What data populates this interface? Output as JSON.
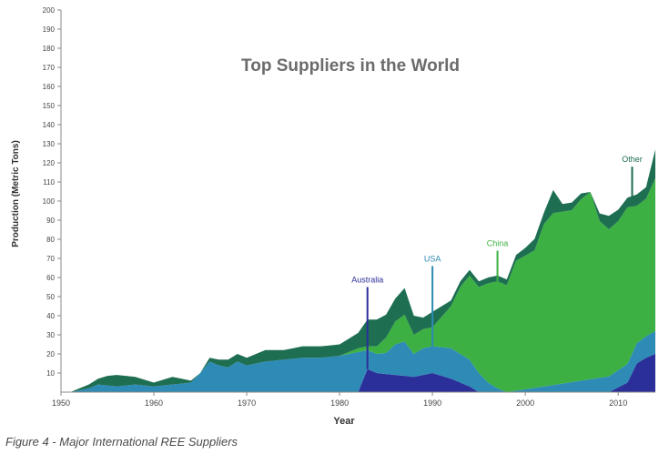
{
  "chart_data": {
    "type": "area",
    "stacked": true,
    "title": "Top Suppliers in the World",
    "xlabel": "Year",
    "ylabel": "Production (Metric Tons)",
    "xlim": [
      1950,
      2014
    ],
    "ylim": [
      0,
      200
    ],
    "x_ticks": [
      1950,
      1960,
      1970,
      1980,
      1990,
      2000,
      2010
    ],
    "y_ticks": [
      10,
      20,
      30,
      40,
      50,
      60,
      70,
      80,
      90,
      100,
      110,
      120,
      130,
      140,
      150,
      160,
      170,
      180,
      190,
      200
    ],
    "grid": false,
    "series": [
      {
        "name": "Australia",
        "color": "#2b2f9a",
        "points": [
          [
            1951,
            0
          ],
          [
            1982,
            0
          ],
          [
            1983,
            12
          ],
          [
            1984,
            10
          ],
          [
            1986,
            9
          ],
          [
            1988,
            8
          ],
          [
            1990,
            10
          ],
          [
            1992,
            7
          ],
          [
            1994,
            3
          ],
          [
            1995,
            0
          ],
          [
            2009,
            0
          ],
          [
            2011,
            5
          ],
          [
            2012,
            15
          ],
          [
            2013,
            18
          ],
          [
            2014,
            20
          ]
        ]
      },
      {
        "name": "USA",
        "color": "#2e8bb5",
        "points": [
          [
            1951,
            0
          ],
          [
            1952,
            1
          ],
          [
            1953,
            2
          ],
          [
            1954,
            4
          ],
          [
            1956,
            3
          ],
          [
            1958,
            4
          ],
          [
            1960,
            3
          ],
          [
            1962,
            4
          ],
          [
            1964,
            5
          ],
          [
            1965,
            10
          ],
          [
            1966,
            16
          ],
          [
            1967,
            14
          ],
          [
            1968,
            13
          ],
          [
            1969,
            16
          ],
          [
            1970,
            14
          ],
          [
            1972,
            16
          ],
          [
            1974,
            17
          ],
          [
            1976,
            18
          ],
          [
            1978,
            18
          ],
          [
            1980,
            19
          ],
          [
            1981,
            20
          ],
          [
            1982,
            21
          ],
          [
            1983,
            10
          ],
          [
            1984,
            10
          ],
          [
            1985,
            11
          ],
          [
            1986,
            16
          ],
          [
            1987,
            18
          ],
          [
            1988,
            12
          ],
          [
            1989,
            14
          ],
          [
            1990,
            14
          ],
          [
            1992,
            16
          ],
          [
            1993,
            15
          ],
          [
            1994,
            14
          ],
          [
            1995,
            10
          ],
          [
            1996,
            5
          ],
          [
            1997,
            2
          ],
          [
            1998,
            0
          ],
          [
            2014,
            12
          ]
        ]
      },
      {
        "name": "China",
        "color": "#3cb043",
        "points": [
          [
            1951,
            0
          ],
          [
            1980,
            0
          ],
          [
            1981,
            1
          ],
          [
            1982,
            2
          ],
          [
            1983,
            2
          ],
          [
            1984,
            4
          ],
          [
            1985,
            8
          ],
          [
            1986,
            12
          ],
          [
            1987,
            14
          ],
          [
            1988,
            10
          ],
          [
            1989,
            10
          ],
          [
            1990,
            10
          ],
          [
            1991,
            16
          ],
          [
            1992,
            22
          ],
          [
            1993,
            35
          ],
          [
            1994,
            44
          ],
          [
            1995,
            45
          ],
          [
            1996,
            52
          ],
          [
            1997,
            56
          ],
          [
            1998,
            56
          ],
          [
            1999,
            68
          ],
          [
            2000,
            70
          ],
          [
            2001,
            72
          ],
          [
            2002,
            85
          ],
          [
            2003,
            90
          ],
          [
            2004,
            90
          ],
          [
            2005,
            90
          ],
          [
            2006,
            95
          ],
          [
            2007,
            98
          ],
          [
            2008,
            82
          ],
          [
            2009,
            77
          ],
          [
            2010,
            78
          ],
          [
            2011,
            82
          ],
          [
            2012,
            72
          ],
          [
            2013,
            72
          ],
          [
            2014,
            80
          ]
        ]
      },
      {
        "name": "Other",
        "color": "#1e6e52",
        "points": [
          [
            1951,
            0
          ],
          [
            1952,
            1
          ],
          [
            1953,
            2
          ],
          [
            1954,
            3
          ],
          [
            1955,
            5
          ],
          [
            1956,
            6
          ],
          [
            1958,
            4
          ],
          [
            1960,
            2
          ],
          [
            1962,
            4
          ],
          [
            1964,
            1
          ],
          [
            1965,
            0
          ],
          [
            1966,
            2
          ],
          [
            1968,
            4
          ],
          [
            1970,
            4
          ],
          [
            1972,
            6
          ],
          [
            1974,
            5
          ],
          [
            1976,
            6
          ],
          [
            1978,
            6
          ],
          [
            1980,
            6
          ],
          [
            1982,
            8
          ],
          [
            1983,
            14
          ],
          [
            1984,
            14
          ],
          [
            1985,
            12
          ],
          [
            1986,
            12
          ],
          [
            1987,
            14
          ],
          [
            1988,
            10
          ],
          [
            1989,
            6
          ],
          [
            1990,
            8
          ],
          [
            1992,
            3
          ],
          [
            1993,
            3
          ],
          [
            1994,
            3
          ],
          [
            1995,
            3
          ],
          [
            1996,
            3
          ],
          [
            1997,
            3
          ],
          [
            1998,
            3
          ],
          [
            1999,
            3
          ],
          [
            2000,
            4
          ],
          [
            2001,
            6
          ],
          [
            2002,
            6
          ],
          [
            2003,
            12
          ],
          [
            2004,
            4
          ],
          [
            2005,
            4
          ],
          [
            2006,
            3
          ],
          [
            2007,
            0
          ],
          [
            2008,
            4
          ],
          [
            2009,
            7
          ],
          [
            2010,
            6
          ],
          [
            2011,
            5
          ],
          [
            2012,
            6
          ],
          [
            2013,
            6
          ],
          [
            2014,
            15
          ]
        ]
      }
    ],
    "annotations": [
      {
        "label": "Australia",
        "x": 1983,
        "y_top": 55,
        "y_bottom": 12,
        "color": "#2b2f9a"
      },
      {
        "label": "USA",
        "x": 1990,
        "y_top": 66,
        "y_bottom": 20,
        "color": "#2e8bb5"
      },
      {
        "label": "China",
        "x": 1997,
        "y_top": 74,
        "y_bottom": 58,
        "color": "#3cb043"
      },
      {
        "label": "Other",
        "x": 2011.5,
        "y_top": 118,
        "y_bottom": 98,
        "color": "#1e6e52"
      }
    ]
  },
  "caption": "Figure 4 - Major International REE Suppliers"
}
